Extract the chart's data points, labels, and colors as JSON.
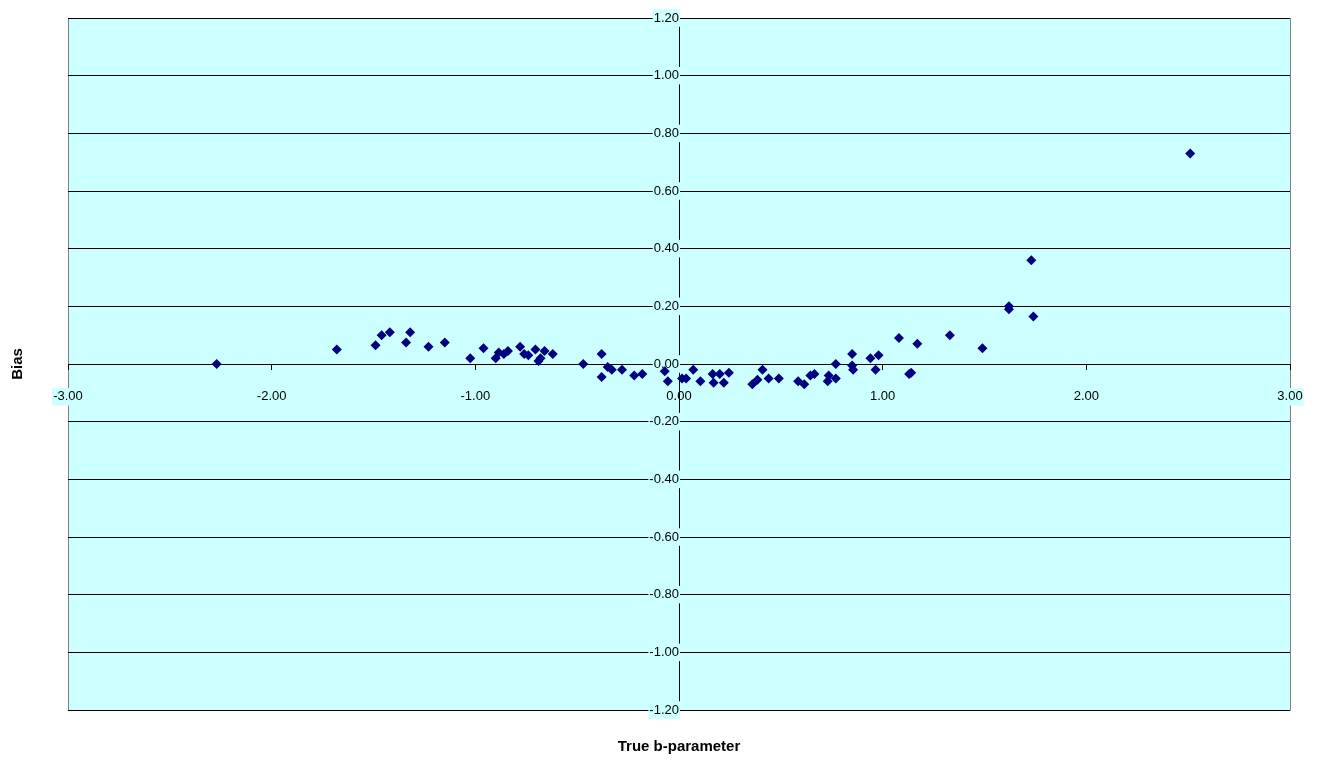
{
  "chart_data": {
    "type": "scatter",
    "xlabel": "True b-parameter",
    "ylabel": "Bias",
    "marker": "diamond",
    "grid": "y",
    "legend": false,
    "xlim": [
      -3,
      3
    ],
    "ylim": [
      -1.2,
      1.2
    ],
    "xticks": [
      {
        "value": -3,
        "label": "-3.00"
      },
      {
        "value": -2,
        "label": "-2.00"
      },
      {
        "value": -1,
        "label": "-1.00"
      },
      {
        "value": 0,
        "label": "0.00"
      },
      {
        "value": 1,
        "label": "1.00"
      },
      {
        "value": 2,
        "label": "2.00"
      },
      {
        "value": 3,
        "label": "3.00"
      }
    ],
    "yticks": [
      {
        "value": -1.2,
        "label": "-1.20"
      },
      {
        "value": -1,
        "label": "-1.00"
      },
      {
        "value": -0.8,
        "label": "-0.80"
      },
      {
        "value": -0.6,
        "label": "-0.60"
      },
      {
        "value": -0.4,
        "label": "-0.40"
      },
      {
        "value": -0.2,
        "label": "-0.20"
      },
      {
        "value": 0,
        "label": "0.00"
      },
      {
        "value": 0.2,
        "label": "0.20"
      },
      {
        "value": 0.4,
        "label": "0.40"
      },
      {
        "value": 0.6,
        "label": "0.60"
      },
      {
        "value": 0.8,
        "label": "0.80"
      },
      {
        "value": 1,
        "label": "1.00"
      },
      {
        "value": 1.2,
        "label": "1.20"
      }
    ],
    "series": [
      {
        "color": "#000080",
        "x": [
          -2.27,
          -1.68,
          -1.49,
          -1.46,
          -1.42,
          -1.34,
          -1.32,
          -1.23,
          -1.15,
          -1.025,
          -0.96,
          -0.9,
          -0.885,
          -0.86,
          -0.84,
          -0.78,
          -0.76,
          -0.74,
          -0.705,
          -0.69,
          -0.68,
          -0.66,
          -0.62,
          -0.47,
          -0.38,
          -0.38,
          -0.35,
          -0.33,
          -0.28,
          -0.22,
          -0.18,
          -0.07,
          -0.055,
          0.015,
          0.035,
          0.07,
          0.105,
          0.165,
          0.17,
          0.2,
          0.22,
          0.245,
          0.36,
          0.385,
          0.41,
          0.44,
          0.49,
          0.585,
          0.615,
          0.645,
          0.665,
          0.73,
          0.735,
          0.77,
          0.77,
          0.85,
          0.85,
          0.855,
          0.94,
          0.965,
          0.98,
          1.08,
          1.13,
          1.14,
          1.17,
          1.33,
          1.49,
          1.62,
          1.62,
          1.73,
          1.74,
          2.51
        ],
        "values": [
          0.0,
          0.05,
          0.065,
          0.1,
          0.11,
          0.075,
          0.11,
          0.06,
          0.075,
          0.02,
          0.055,
          0.02,
          0.04,
          0.035,
          0.045,
          0.06,
          0.035,
          0.03,
          0.05,
          0.01,
          0.02,
          0.045,
          0.035,
          0.0,
          0.035,
          -0.045,
          -0.01,
          -0.02,
          -0.02,
          -0.04,
          -0.035,
          -0.025,
          -0.06,
          -0.05,
          -0.05,
          -0.02,
          -0.06,
          -0.035,
          -0.065,
          -0.035,
          -0.065,
          -0.03,
          -0.07,
          -0.055,
          -0.02,
          -0.05,
          -0.05,
          -0.06,
          -0.07,
          -0.04,
          -0.035,
          -0.06,
          -0.04,
          -0.05,
          0.0,
          0.035,
          -0.005,
          -0.02,
          0.02,
          -0.02,
          0.03,
          0.09,
          -0.035,
          -0.03,
          0.07,
          0.1,
          0.055,
          0.2,
          0.19,
          0.36,
          0.165,
          0.73
        ]
      }
    ]
  }
}
